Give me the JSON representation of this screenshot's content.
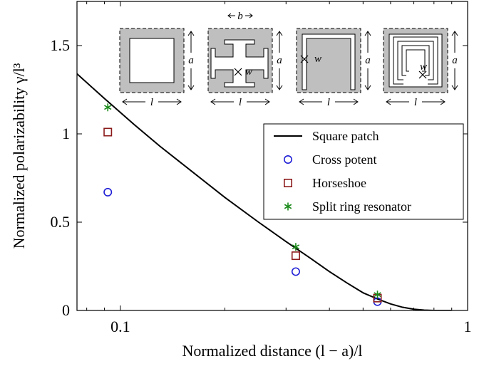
{
  "chart_data": {
    "type": "scatter",
    "xscale": "log",
    "xlim": [
      0.075,
      1
    ],
    "ylim": [
      0,
      1.75
    ],
    "xlabel": "Normalized distance (l − a)/l",
    "ylabel": "Normalized polarizability γ/l³",
    "x_ticks": [
      {
        "value": 0.1,
        "label": "0.1"
      },
      {
        "value": 1,
        "label": "1"
      }
    ],
    "y_ticks": [
      {
        "value": 0,
        "label": "0"
      },
      {
        "value": 0.5,
        "label": "0.5"
      },
      {
        "value": 1,
        "label": "1"
      },
      {
        "value": 1.5,
        "label": "1.5"
      }
    ],
    "legend_position": "right",
    "series": [
      {
        "name": "Square patch",
        "kind": "line",
        "color": "#000000",
        "x": [
          0.075,
          0.09,
          0.11,
          0.13,
          0.16,
          0.2,
          0.25,
          0.3,
          0.35,
          0.4,
          0.45,
          0.5,
          0.55,
          0.6,
          0.65,
          0.7,
          0.75,
          0.8,
          0.85,
          0.9
        ],
        "y": [
          1.34,
          1.2,
          1.05,
          0.93,
          0.79,
          0.64,
          0.5,
          0.39,
          0.3,
          0.22,
          0.155,
          0.1,
          0.065,
          0.037,
          0.018,
          0.007,
          0.002,
          0.0,
          0.0,
          0.0
        ]
      },
      {
        "name": "Cross potent",
        "kind": "marker",
        "marker": "circle",
        "color": "#1f1fd6",
        "x": [
          0.092,
          0.32,
          0.55
        ],
        "y": [
          0.67,
          0.22,
          0.05
        ]
      },
      {
        "name": "Horseshoe",
        "kind": "marker",
        "marker": "square",
        "color": "#8b1a1a",
        "x": [
          0.092,
          0.32,
          0.55
        ],
        "y": [
          1.01,
          0.31,
          0.07
        ]
      },
      {
        "name": "Split ring resonator",
        "kind": "marker",
        "marker": "star",
        "color": "#1a8a1a",
        "x": [
          0.092,
          0.32,
          0.55
        ],
        "y": [
          1.15,
          0.36,
          0.09
        ]
      }
    ]
  },
  "insets": {
    "label_a": "a",
    "label_l": "l",
    "label_b": "b",
    "label_w": "w",
    "shapes": [
      "square-patch",
      "cross-potent",
      "horseshoe",
      "split-ring"
    ]
  }
}
